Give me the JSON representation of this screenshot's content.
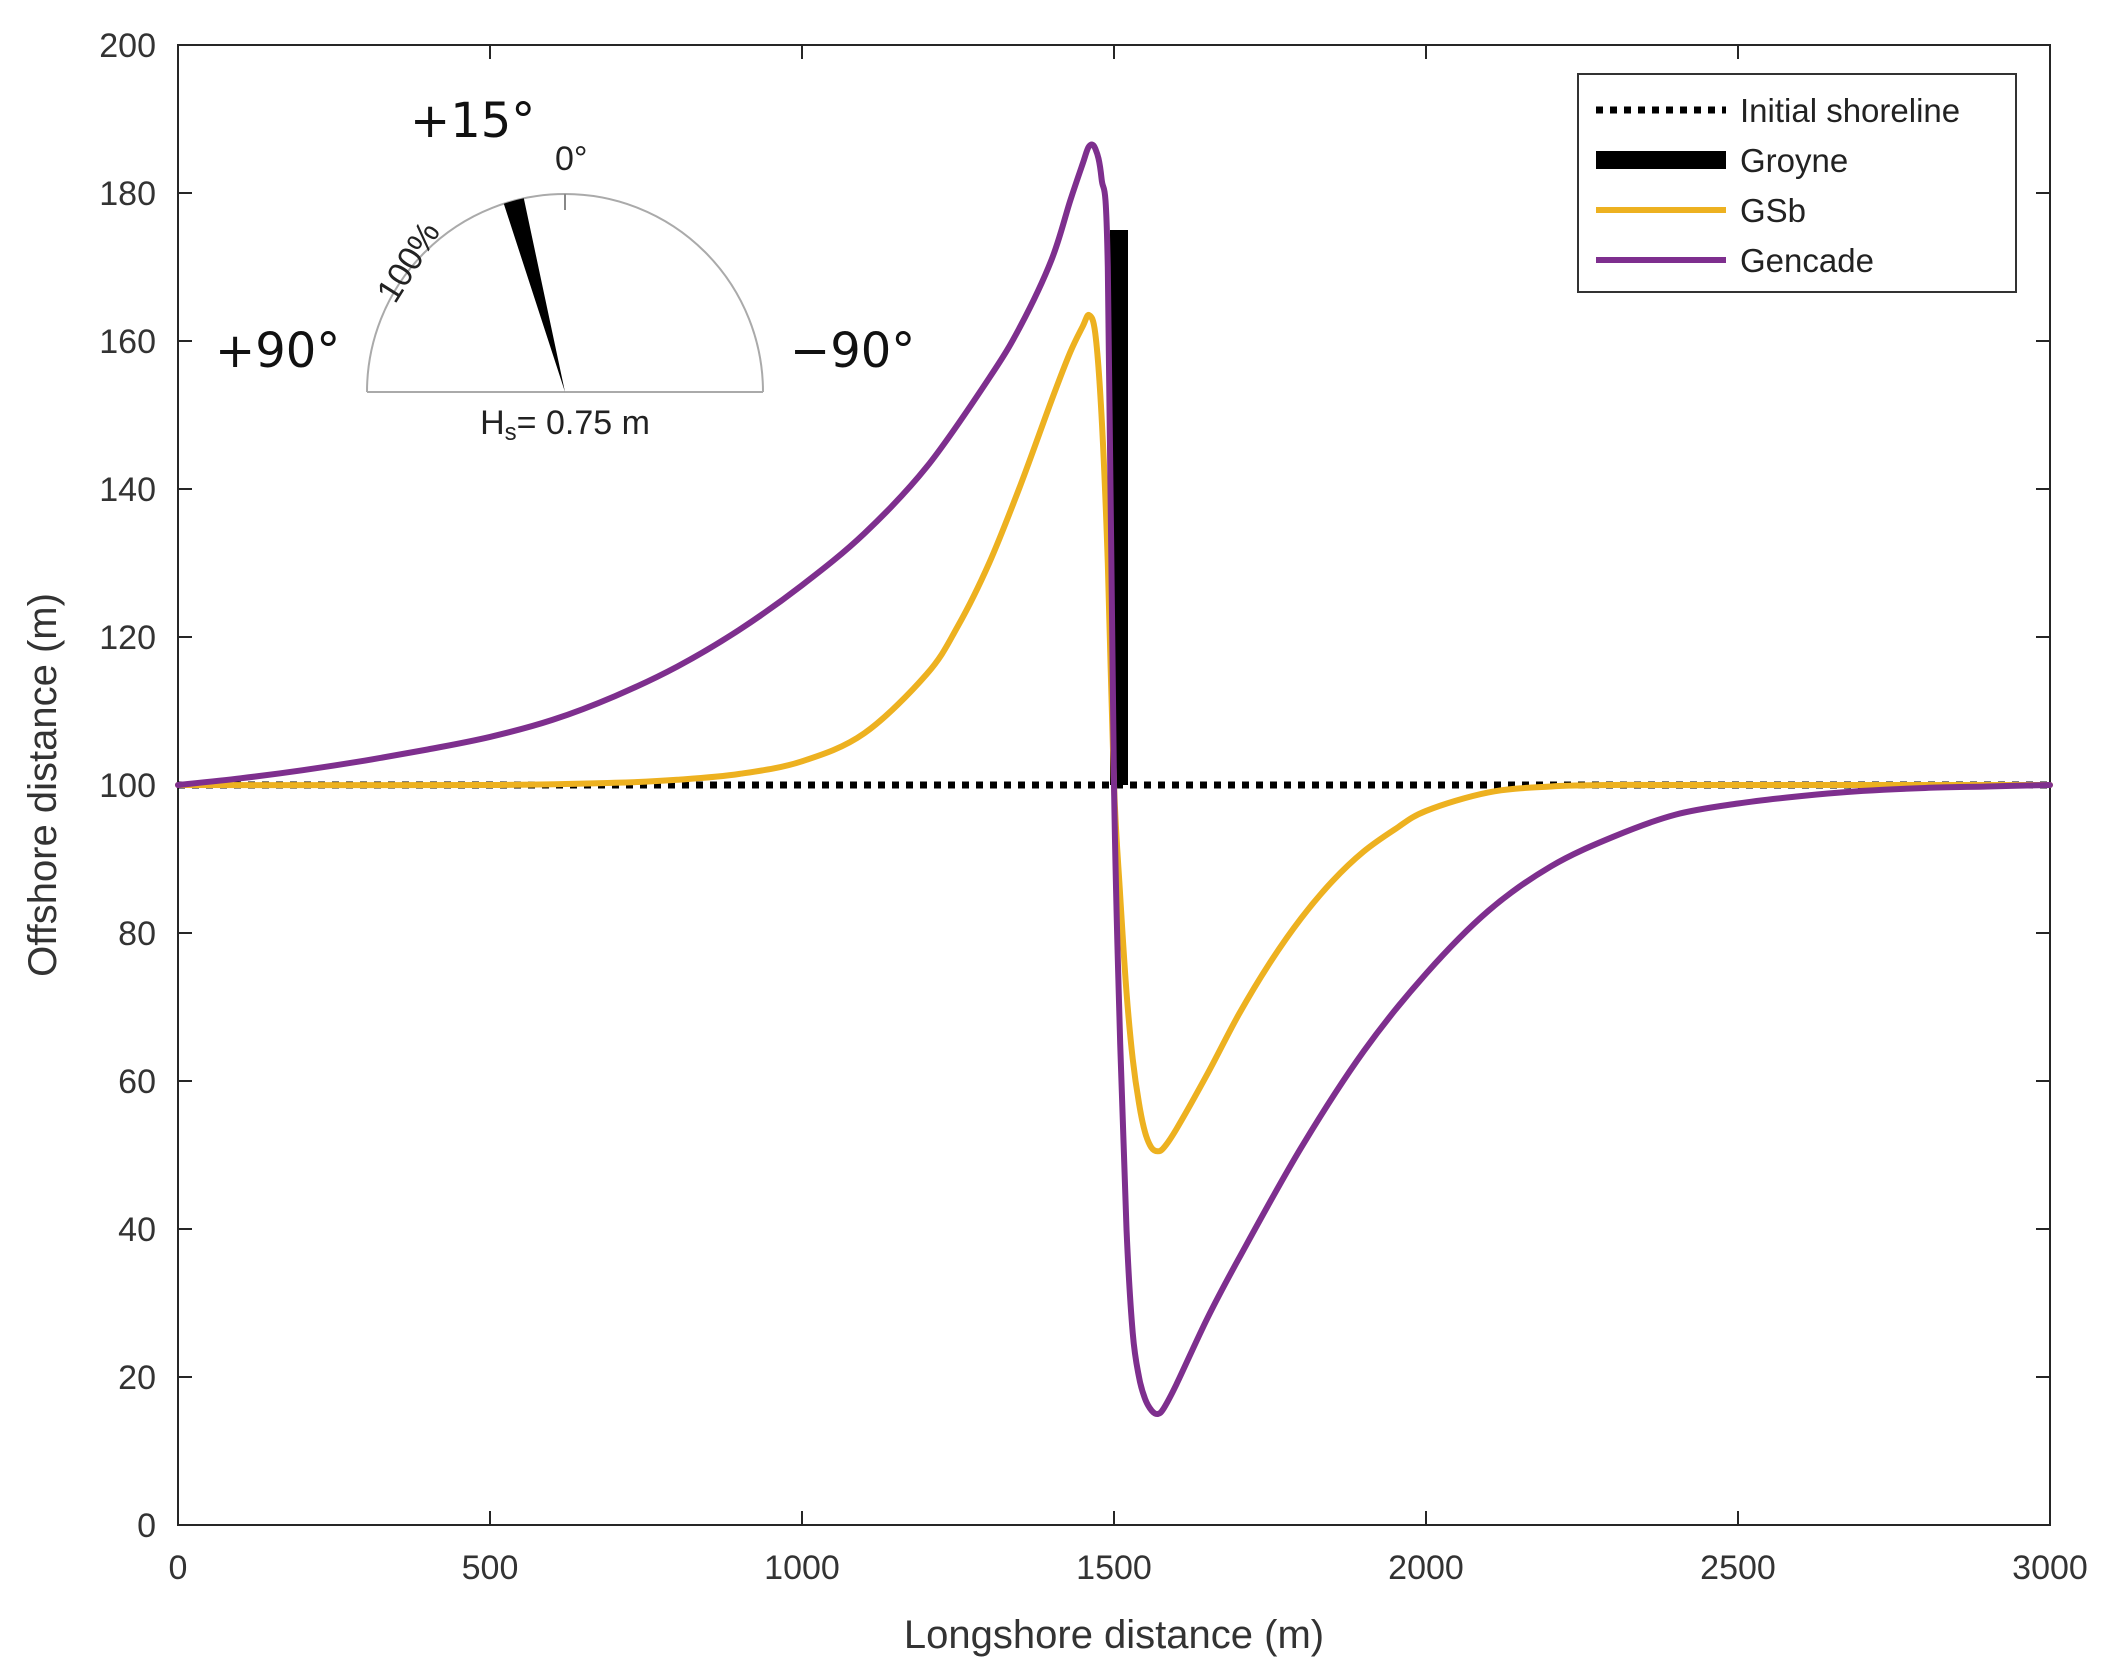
{
  "chart_data": {
    "type": "line",
    "title": "",
    "xlabel": "Longshore distance (m)",
    "ylabel": "Offshore distance (m)",
    "xlim": [
      0,
      3000
    ],
    "ylim": [
      0,
      200
    ],
    "xticks": [
      0,
      500,
      1000,
      1500,
      2000,
      2500,
      3000
    ],
    "yticks": [
      0,
      20,
      40,
      60,
      80,
      100,
      120,
      140,
      160,
      180,
      200
    ],
    "grid": false,
    "legend_position": "top-right",
    "series": [
      {
        "name": "Initial shoreline",
        "style": "dotted",
        "color": "#000000",
        "x": [
          0,
          3000
        ],
        "y": [
          100,
          100
        ]
      },
      {
        "name": "Groyne",
        "style": "bar",
        "color": "#000000",
        "x": [
          1500,
          1500
        ],
        "y": [
          100,
          175
        ]
      },
      {
        "name": "GSb",
        "style": "solid",
        "color": "#EDB120",
        "x": [
          0,
          500,
          700,
          800,
          900,
          1000,
          1100,
          1200,
          1250,
          1300,
          1350,
          1400,
          1430,
          1450,
          1460,
          1470,
          1480,
          1490,
          1500,
          1510,
          1520,
          1530,
          1540,
          1550,
          1560,
          1570,
          1580,
          1600,
          1650,
          1700,
          1750,
          1800,
          1850,
          1900,
          1950,
          2000,
          2100,
          2200,
          2300,
          2500,
          3000
        ],
        "y": [
          100,
          100,
          100.3,
          100.7,
          101.5,
          103.2,
          107,
          115,
          121.5,
          130,
          140.5,
          152,
          158.5,
          162,
          163.5,
          161,
          150,
          130,
          100,
          85,
          72,
          63,
          57,
          53,
          51,
          50.5,
          51,
          53.5,
          61,
          69,
          76,
          82,
          87,
          91,
          94,
          96.5,
          99,
          99.8,
          100,
          100,
          100
        ]
      },
      {
        "name": "Gencade",
        "style": "solid",
        "color": "#7E2F8E",
        "x": [
          0,
          100,
          200,
          300,
          400,
          500,
          600,
          700,
          800,
          900,
          1000,
          1100,
          1200,
          1300,
          1350,
          1400,
          1430,
          1450,
          1460,
          1470,
          1480,
          1490,
          1500,
          1510,
          1520,
          1530,
          1540,
          1550,
          1560,
          1570,
          1580,
          1600,
          1650,
          1700,
          1800,
          1900,
          2000,
          2100,
          2200,
          2300,
          2400,
          2500,
          2600,
          2700,
          2800,
          2900,
          3000
        ],
        "y": [
          100,
          100.9,
          102,
          103.3,
          104.8,
          106.5,
          108.8,
          112,
          116,
          121,
          127,
          134,
          143,
          155,
          162,
          171,
          179,
          184,
          186.3,
          186,
          182,
          170,
          100,
          65,
          40,
          26,
          20,
          17,
          15.5,
          15,
          15.8,
          19,
          28,
          36,
          51,
          64,
          74.5,
          83,
          89,
          93,
          96,
          97.5,
          98.5,
          99.2,
          99.6,
          99.8,
          100
        ]
      }
    ],
    "annotations": {
      "inset": {
        "label_left": "+90°",
        "label_right": "−90°",
        "label_wave_direction": "+15°",
        "label_zero": "0°",
        "label_percent": "100%",
        "label_height_symbol": "H",
        "label_height_subscript": "s",
        "label_height_value": "= 0.75 m",
        "wave_direction_deg": 15,
        "wave_fraction_percent": 100,
        "sector_width_deg": 6
      }
    }
  }
}
